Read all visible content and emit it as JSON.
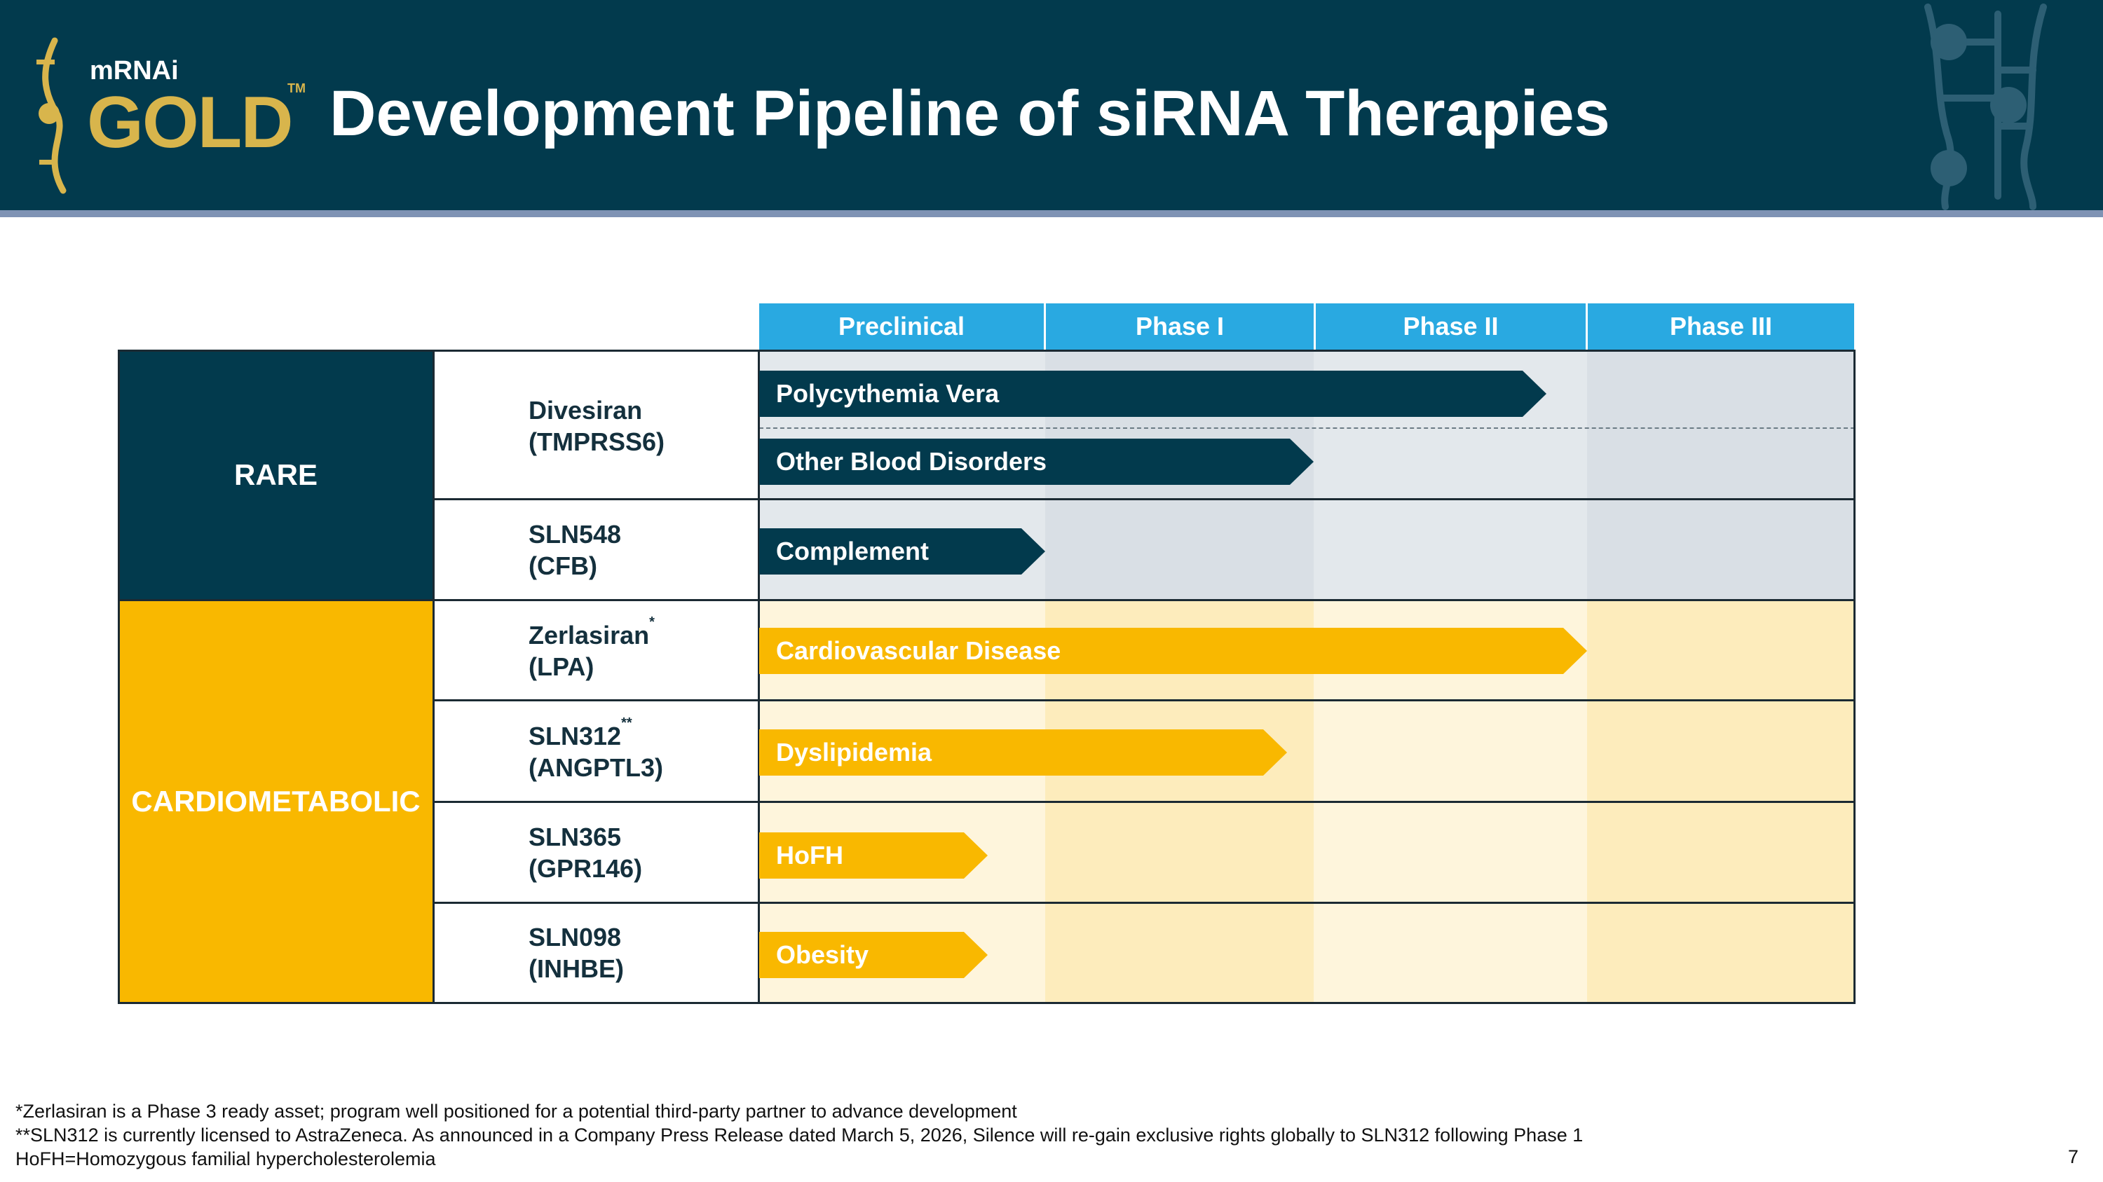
{
  "header": {
    "logo_small": "mRNAi",
    "logo_main": "GOLD",
    "logo_tm": "TM",
    "title": "Development Pipeline of siRNA Therapies"
  },
  "phases": [
    "Preclinical",
    "Phase I",
    "Phase II",
    "Phase III"
  ],
  "categories": {
    "rare": "RARE",
    "cardiometabolic": "CARDIOMETABOLIC"
  },
  "programs": [
    {
      "name": "Divesiran",
      "target": "(TMPRSS6)",
      "mark": ""
    },
    {
      "name": "SLN548",
      "target": "(CFB)",
      "mark": ""
    },
    {
      "name": "Zerlasiran",
      "target": "(LPA)",
      "mark": "*"
    },
    {
      "name": "SLN312",
      "target": "(ANGPTL3)",
      "mark": "**"
    },
    {
      "name": "SLN365",
      "target": "(GPR146)",
      "mark": ""
    },
    {
      "name": "SLN098",
      "target": "(INHBE)",
      "mark": ""
    }
  ],
  "indications": [
    {
      "label": "Polycythemia Vera",
      "program": "Divesiran",
      "progress_phases": 2.85
    },
    {
      "label": "Other Blood Disorders",
      "program": "Divesiran",
      "progress_phases": 2.0
    },
    {
      "label": "Complement",
      "program": "SLN548",
      "progress_phases": 1.0
    },
    {
      "label": "Cardiovascular Disease",
      "program": "Zerlasiran",
      "progress_phases": 3.0
    },
    {
      "label": "Dyslipidemia",
      "program": "SLN312",
      "progress_phases": 1.9
    },
    {
      "label": "HoFH",
      "program": "SLN365",
      "progress_phases": 0.8
    },
    {
      "label": "Obesity",
      "program": "SLN098",
      "progress_phases": 0.8
    }
  ],
  "footnotes": [
    "*Zerlasiran is a Phase 3 ready asset; program well positioned for a potential third-party partner to advance development",
    "**SLN312 is currently licensed to AstraZeneca. As announced in a Company Press Release dated March 5, 2026, Silence will re-gain exclusive rights globally to SLN312 following Phase 1",
    "HoFH=Homozygous familial hypercholesterolemia"
  ],
  "page_number": "7",
  "colors": {
    "navy": "#023a4d",
    "gold": "#f9b800",
    "phase_header": "#29a9e1",
    "logo_gold": "#d8b54c"
  }
}
